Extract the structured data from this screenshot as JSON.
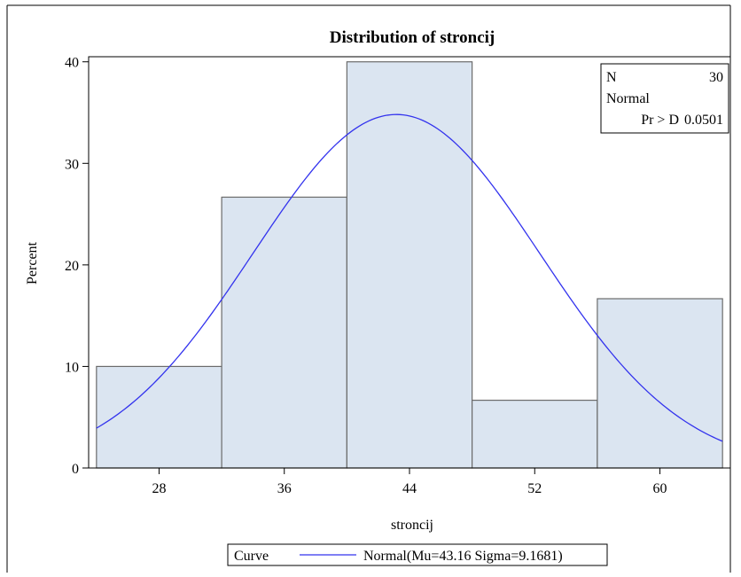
{
  "chart_data": {
    "type": "bar",
    "title": "Distribution of stroncij",
    "xlabel": "stroncij",
    "ylabel": "Percent",
    "xlim": [
      23.5,
      64.5
    ],
    "ylim": [
      0,
      40.5
    ],
    "x_ticks": [
      28,
      36,
      44,
      52,
      60
    ],
    "y_ticks": [
      0,
      10,
      20,
      30,
      40
    ],
    "bins": [
      {
        "midpoint": 28,
        "low": 24,
        "high": 32,
        "value": 10.0
      },
      {
        "midpoint": 36,
        "low": 32,
        "high": 40,
        "value": 26.67
      },
      {
        "midpoint": 44,
        "low": 40,
        "high": 48,
        "value": 40.0
      },
      {
        "midpoint": 52,
        "low": 48,
        "high": 56,
        "value": 6.67
      },
      {
        "midpoint": 60,
        "low": 56,
        "high": 64,
        "value": 16.67
      }
    ],
    "normal_curve": {
      "mu": 43.16,
      "sigma": 9.1681,
      "bin_width": 8,
      "color": "#3333ee"
    },
    "bar_fill": "#dbe5f1",
    "bar_stroke": "#6b6b6b",
    "inset": {
      "n_label": "N",
      "n_value": "30",
      "dist_label": "Normal",
      "test_label": "Pr > D",
      "test_value": "0.0501"
    },
    "legend": {
      "position": "bottom",
      "title": "Curve",
      "entry": "Normal(Mu=43.16 Sigma=9.1681)"
    },
    "grid": false
  }
}
